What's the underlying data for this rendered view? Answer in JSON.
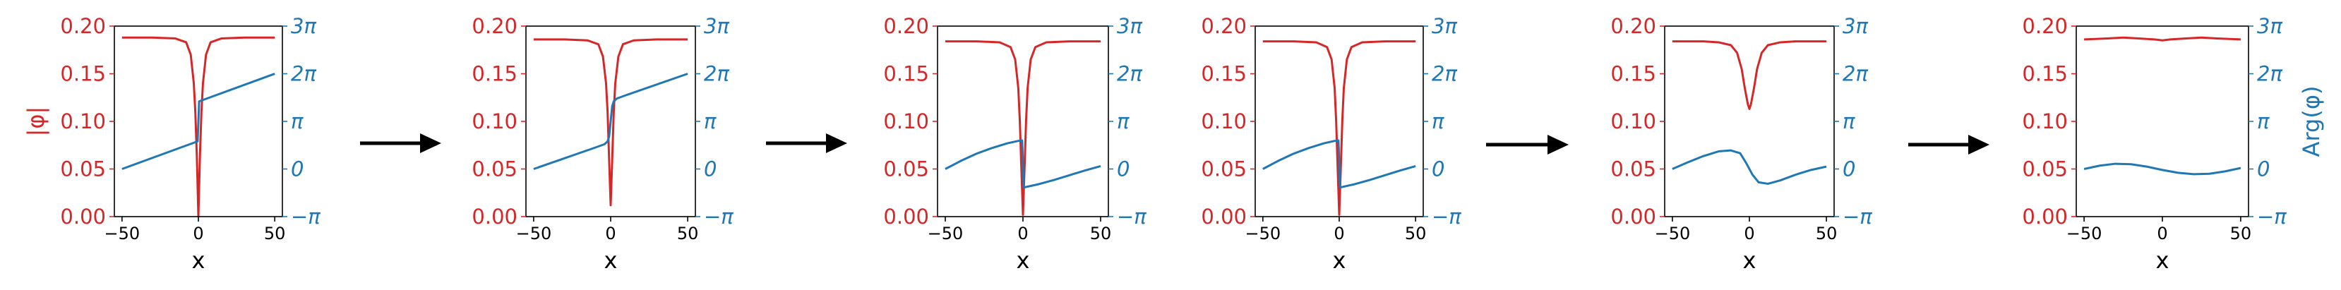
{
  "figure": {
    "left_color": "#d62728",
    "right_color": "#1f77b4",
    "arrow_icon": "right-arrow-icon"
  },
  "chart_data": [
    {
      "type": "line",
      "xlabel": "x",
      "ylabel_left": "|φ|",
      "ylabel_right": "",
      "xlim": [
        -55,
        55
      ],
      "x_ticks": [
        "−50",
        "0",
        "50"
      ],
      "y_left": {
        "lim": [
          0,
          0.2
        ],
        "ticks": [
          "0.00",
          "0.05",
          "0.10",
          "0.15",
          "0.20"
        ]
      },
      "y_right": {
        "lim": [
          -1,
          3
        ],
        "unit": "π",
        "ticks": [
          "−π",
          "0",
          "π",
          "2π",
          "3π"
        ]
      },
      "series": [
        {
          "axis": "left",
          "color": "#d62728",
          "x": [
            -50,
            -30,
            -15,
            -8,
            -5,
            -3,
            -2,
            -1,
            -0.5,
            0,
            0.5,
            1,
            2,
            3,
            5,
            8,
            15,
            30,
            50
          ],
          "values": [
            0.188,
            0.188,
            0.187,
            0.183,
            0.17,
            0.14,
            0.11,
            0.063,
            0.032,
            0,
            0.032,
            0.063,
            0.11,
            0.14,
            0.17,
            0.183,
            0.187,
            0.188,
            0.188
          ]
        },
        {
          "axis": "right",
          "color": "#1f77b4",
          "x": [
            -50,
            -0.5,
            0.5,
            50
          ],
          "values": [
            0,
            0.58,
            1.42,
            2
          ]
        }
      ]
    },
    {
      "type": "line",
      "xlabel": "x",
      "ylabel_left": "",
      "ylabel_right": "",
      "xlim": [
        -55,
        55
      ],
      "x_ticks": [
        "−50",
        "0",
        "50"
      ],
      "y_left": {
        "lim": [
          0,
          0.2
        ],
        "ticks": [
          "0.00",
          "0.05",
          "0.10",
          "0.15",
          "0.20"
        ]
      },
      "y_right": {
        "lim": [
          -1,
          3
        ],
        "unit": "π",
        "ticks": [
          "−π",
          "0",
          "π",
          "2π",
          "3π"
        ]
      },
      "series": [
        {
          "axis": "left",
          "color": "#d62728",
          "x": [
            -50,
            -30,
            -15,
            -8,
            -5,
            -3,
            -2,
            -1,
            0,
            1,
            2,
            3,
            5,
            8,
            15,
            30,
            50
          ],
          "values": [
            0.186,
            0.186,
            0.185,
            0.181,
            0.168,
            0.14,
            0.11,
            0.06,
            0.012,
            0.06,
            0.11,
            0.14,
            0.168,
            0.181,
            0.185,
            0.186,
            0.186
          ]
        },
        {
          "axis": "right",
          "color": "#1f77b4",
          "x": [
            -50,
            -10,
            -4,
            -2,
            -1,
            0,
            1,
            2,
            4,
            10,
            50
          ],
          "values": [
            0,
            0.45,
            0.52,
            0.58,
            0.68,
            1.0,
            1.32,
            1.42,
            1.48,
            1.55,
            2
          ]
        }
      ]
    },
    {
      "type": "line",
      "xlabel": "x",
      "ylabel_left": "",
      "ylabel_right": "",
      "xlim": [
        -55,
        55
      ],
      "x_ticks": [
        "−50",
        "0",
        "50"
      ],
      "y_left": {
        "lim": [
          0,
          0.2
        ],
        "ticks": [
          "0.00",
          "0.05",
          "0.10",
          "0.15",
          "0.20"
        ]
      },
      "y_right": {
        "lim": [
          -1,
          3
        ],
        "unit": "π",
        "ticks": [
          "−π",
          "0",
          "π",
          "2π",
          "3π"
        ]
      },
      "series": [
        {
          "axis": "left",
          "color": "#d62728",
          "x": [
            -50,
            -30,
            -15,
            -8,
            -5,
            -3,
            -2,
            -1,
            0,
            1,
            2,
            3,
            5,
            8,
            15,
            30,
            50
          ],
          "values": [
            0.184,
            0.184,
            0.183,
            0.178,
            0.165,
            0.135,
            0.1,
            0.05,
            0.002,
            0.05,
            0.1,
            0.135,
            0.165,
            0.178,
            0.183,
            0.184,
            0.184
          ]
        },
        {
          "axis": "right",
          "color": "#1f77b4",
          "x": [
            -50,
            -40,
            -30,
            -20,
            -10,
            -3,
            -0.5,
            0.5,
            3,
            10,
            20,
            30,
            40,
            50
          ],
          "values": [
            0,
            0.17,
            0.32,
            0.44,
            0.54,
            0.59,
            0.6,
            -0.39,
            -0.37,
            -0.32,
            -0.23,
            -0.13,
            -0.03,
            0.06
          ]
        }
      ]
    },
    {
      "type": "line",
      "xlabel": "x",
      "ylabel_left": "",
      "ylabel_right": "",
      "xlim": [
        -55,
        55
      ],
      "x_ticks": [
        "−50",
        "0",
        "50"
      ],
      "y_left": {
        "lim": [
          0,
          0.2
        ],
        "ticks": [
          "0.00",
          "0.05",
          "0.10",
          "0.15",
          "0.20"
        ]
      },
      "y_right": {
        "lim": [
          -1,
          3
        ],
        "unit": "π",
        "ticks": [
          "−π",
          "0",
          "π",
          "2π",
          "3π"
        ]
      },
      "series": [
        {
          "axis": "left",
          "color": "#d62728",
          "x": [
            -50,
            -30,
            -15,
            -8,
            -5,
            -3,
            -2,
            -1,
            0,
            1,
            2,
            3,
            5,
            8,
            15,
            30,
            50
          ],
          "values": [
            0.184,
            0.184,
            0.183,
            0.178,
            0.165,
            0.135,
            0.1,
            0.05,
            0.002,
            0.05,
            0.1,
            0.135,
            0.165,
            0.178,
            0.183,
            0.184,
            0.184
          ]
        },
        {
          "axis": "right",
          "color": "#1f77b4",
          "x": [
            -50,
            -40,
            -30,
            -20,
            -10,
            -3,
            -0.5,
            0.5,
            3,
            10,
            20,
            30,
            40,
            50
          ],
          "values": [
            0,
            0.17,
            0.32,
            0.44,
            0.54,
            0.59,
            0.6,
            -0.39,
            -0.37,
            -0.32,
            -0.23,
            -0.13,
            -0.03,
            0.06
          ]
        }
      ]
    },
    {
      "type": "line",
      "xlabel": "x",
      "ylabel_left": "",
      "ylabel_right": "",
      "xlim": [
        -55,
        55
      ],
      "x_ticks": [
        "−50",
        "0",
        "50"
      ],
      "y_left": {
        "lim": [
          0,
          0.2
        ],
        "ticks": [
          "0.00",
          "0.05",
          "0.10",
          "0.15",
          "0.20"
        ]
      },
      "y_right": {
        "lim": [
          -1,
          3
        ],
        "unit": "π",
        "ticks": [
          "−π",
          "0",
          "π",
          "2π",
          "3π"
        ]
      },
      "series": [
        {
          "axis": "left",
          "color": "#d62728",
          "x": [
            -50,
            -30,
            -20,
            -12,
            -8,
            -5,
            -3,
            -1,
            0,
            1,
            3,
            5,
            8,
            12,
            20,
            30,
            50
          ],
          "values": [
            0.184,
            0.184,
            0.183,
            0.18,
            0.172,
            0.155,
            0.135,
            0.118,
            0.113,
            0.118,
            0.135,
            0.155,
            0.172,
            0.18,
            0.183,
            0.184,
            0.184
          ]
        },
        {
          "axis": "right",
          "color": "#1f77b4",
          "x": [
            -50,
            -40,
            -30,
            -20,
            -12,
            -6,
            -2,
            2,
            6,
            12,
            20,
            30,
            40,
            50
          ],
          "values": [
            0,
            0.14,
            0.27,
            0.37,
            0.39,
            0.33,
            0.12,
            -0.12,
            -0.28,
            -0.31,
            -0.24,
            -0.12,
            -0.02,
            0.05
          ]
        }
      ]
    },
    {
      "type": "line",
      "xlabel": "x",
      "ylabel_left": "",
      "ylabel_right": "Arg(φ)",
      "xlim": [
        -55,
        55
      ],
      "x_ticks": [
        "−50",
        "0",
        "50"
      ],
      "y_left": {
        "lim": [
          0,
          0.2
        ],
        "ticks": [
          "0.00",
          "0.05",
          "0.10",
          "0.15",
          "0.20"
        ]
      },
      "y_right": {
        "lim": [
          -1,
          3
        ],
        "unit": "π",
        "ticks": [
          "−π",
          "0",
          "π",
          "2π",
          "3π"
        ]
      },
      "series": [
        {
          "axis": "left",
          "color": "#d62728",
          "x": [
            -50,
            -35,
            -25,
            -15,
            -5,
            0,
            5,
            15,
            25,
            35,
            50
          ],
          "values": [
            0.186,
            0.187,
            0.188,
            0.187,
            0.186,
            0.185,
            0.186,
            0.187,
            0.188,
            0.187,
            0.186
          ]
        },
        {
          "axis": "right",
          "color": "#1f77b4",
          "x": [
            -50,
            -40,
            -30,
            -20,
            -10,
            0,
            10,
            20,
            30,
            40,
            50
          ],
          "values": [
            0,
            0.07,
            0.11,
            0.1,
            0.05,
            -0.02,
            -0.08,
            -0.11,
            -0.1,
            -0.05,
            0.02
          ]
        }
      ]
    }
  ]
}
